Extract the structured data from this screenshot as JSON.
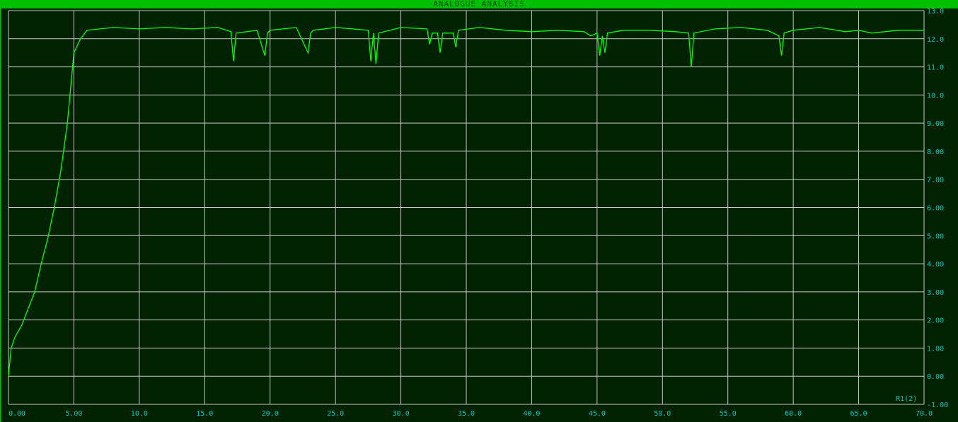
{
  "window": {
    "title": "ANALOGUE ANALYSIS"
  },
  "colors": {
    "background": "#002200",
    "grid": "#c8c8c8",
    "trace": "#00ff00",
    "ticks": "#00c8c8",
    "title_bar": "#00c000"
  },
  "chart_data": {
    "type": "line",
    "title": "ANALOGUE ANALYSIS",
    "xlim": [
      0,
      70
    ],
    "ylim": [
      -1,
      13
    ],
    "grid": true,
    "x_ticks": [
      0,
      5,
      10,
      15,
      20,
      25,
      30,
      35,
      40,
      45,
      50,
      55,
      60,
      65,
      70
    ],
    "x_tick_labels": [
      "0.00",
      "5.00",
      "10.0",
      "15.0",
      "20.0",
      "25.0",
      "30.0",
      "35.0",
      "40.0",
      "45.0",
      "50.0",
      "55.0",
      "60.0",
      "65.0",
      "70.0"
    ],
    "y_ticks": [
      -1,
      0,
      1,
      2,
      3,
      4,
      5,
      6,
      7,
      8,
      9,
      10,
      11,
      12,
      13
    ],
    "y_tick_labels": [
      "-1.00",
      "0.00",
      "1.00",
      "2.00",
      "3.00",
      "4.00",
      "5.00",
      "6.00",
      "7.00",
      "8.00",
      "9.00",
      "10.0",
      "11.0",
      "12.0",
      "13.0"
    ],
    "series": [
      {
        "name": "R1(2)",
        "x": [
          0,
          0.2,
          0.5,
          1.0,
          1.5,
          2.0,
          2.5,
          3.0,
          3.5,
          4.0,
          4.5,
          5.0,
          5.5,
          6.0,
          8,
          10,
          12,
          14,
          16,
          17,
          17.2,
          17.4,
          19,
          19.6,
          19.8,
          20,
          22,
          22.9,
          23.1,
          23.3,
          25,
          27.5,
          27.7,
          27.9,
          28.1,
          28.3,
          30,
          32,
          32.2,
          32.4,
          32.8,
          33,
          33.2,
          34,
          34.2,
          34.4,
          36,
          38,
          40,
          42,
          44,
          44.5,
          45,
          45.2,
          45.4,
          45.6,
          45.8,
          47,
          49,
          51,
          52,
          52.2,
          52.4,
          54,
          56,
          58,
          58.9,
          59.1,
          59.3,
          60,
          62,
          64,
          65,
          66,
          68,
          70
        ],
        "y": [
          0,
          1.0,
          1.4,
          1.8,
          2.4,
          3.0,
          4.0,
          4.9,
          6.0,
          7.3,
          9.0,
          11.5,
          12.0,
          12.3,
          12.4,
          12.35,
          12.4,
          12.35,
          12.4,
          12.25,
          11.2,
          12.2,
          12.3,
          11.4,
          12.2,
          12.3,
          12.4,
          11.5,
          12.2,
          12.3,
          12.4,
          12.3,
          11.2,
          12.2,
          11.1,
          12.2,
          12.4,
          12.35,
          11.8,
          12.2,
          12.2,
          11.5,
          12.2,
          12.2,
          11.7,
          12.3,
          12.4,
          12.3,
          12.25,
          12.3,
          12.25,
          12.1,
          12.2,
          11.4,
          12.1,
          11.5,
          12.2,
          12.3,
          12.3,
          12.25,
          12.2,
          11.0,
          12.2,
          12.35,
          12.4,
          12.3,
          12.1,
          11.4,
          12.2,
          12.3,
          12.4,
          12.25,
          12.3,
          12.2,
          12.3,
          12.3
        ]
      }
    ]
  }
}
